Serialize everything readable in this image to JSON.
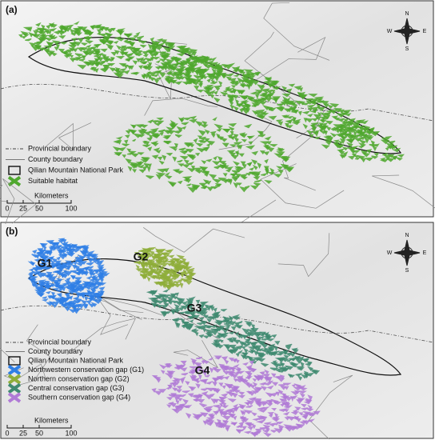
{
  "panels": [
    {
      "label": "(a)",
      "compass": {
        "n": "N",
        "w": "W",
        "e": "E",
        "s": "S"
      },
      "legend": [
        {
          "label": "Provincial boundary",
          "symbol": "dash-dot"
        },
        {
          "label": "County boundary",
          "symbol": "line"
        },
        {
          "label": "Qilian Mountain National Park",
          "symbol": "outline"
        },
        {
          "label": "Suitable habitat",
          "symbol": "patch",
          "color": "#4fa82e"
        }
      ],
      "scale": {
        "unit": "Kilometers",
        "ticks": [
          0,
          25,
          50,
          100
        ]
      }
    },
    {
      "label": "(b)",
      "compass": {
        "n": "N",
        "w": "W",
        "e": "E",
        "s": "S"
      },
      "regions": [
        {
          "label": "G1",
          "color": "#2f7fe6"
        },
        {
          "label": "G2",
          "color": "#8fae3a"
        },
        {
          "label": "G3",
          "color": "#3f8a70"
        },
        {
          "label": "G4",
          "color": "#b07ad6"
        }
      ],
      "legend": [
        {
          "label": "Provincial boundary",
          "symbol": "dash-dot"
        },
        {
          "label": "County boundary",
          "symbol": "line"
        },
        {
          "label": "Qilian Mountain National Park",
          "symbol": "outline"
        },
        {
          "label": "Northwestern conservation gap (G1)",
          "symbol": "patch",
          "color": "#2f7fe6"
        },
        {
          "label": "Northern conservation gap (G2)",
          "symbol": "patch",
          "color": "#8fae3a"
        },
        {
          "label": "Central conservation gap (G3)",
          "symbol": "patch",
          "color": "#3f8a70"
        },
        {
          "label": "Southern conservation gap (G4)",
          "symbol": "patch",
          "color": "#b07ad6"
        }
      ],
      "scale": {
        "unit": "Kilometers",
        "ticks": [
          0,
          25,
          50,
          100
        ]
      }
    }
  ]
}
